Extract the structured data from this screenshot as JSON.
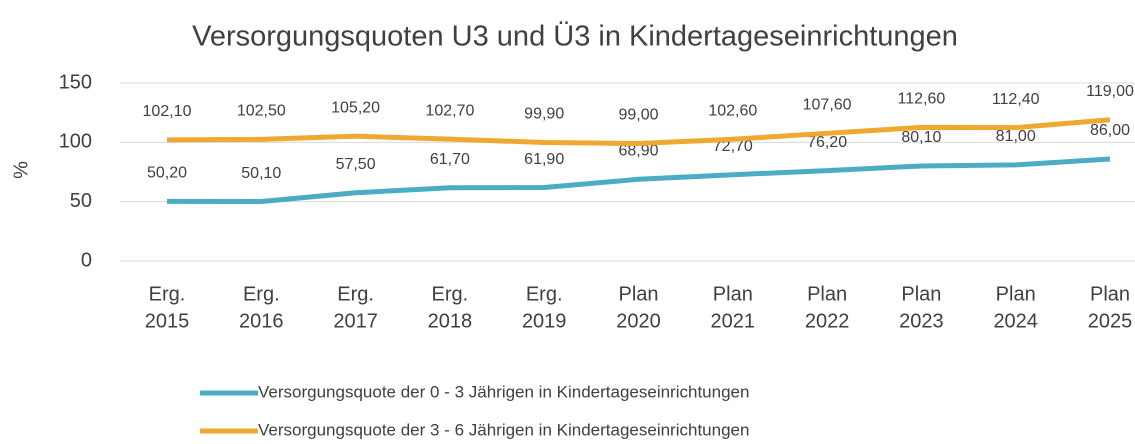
{
  "chart_data": {
    "type": "line",
    "title": "Versorgungsquoten U3 und Ü3 in Kindertageseinrichtungen",
    "ylabel": "%",
    "categories": [
      [
        "Erg.",
        "2015"
      ],
      [
        "Erg.",
        "2016"
      ],
      [
        "Erg.",
        "2017"
      ],
      [
        "Erg.",
        "2018"
      ],
      [
        "Erg.",
        "2019"
      ],
      [
        "Plan",
        "2020"
      ],
      [
        "Plan",
        "2021"
      ],
      [
        "Plan",
        "2022"
      ],
      [
        "Plan",
        "2023"
      ],
      [
        "Plan",
        "2024"
      ],
      [
        "Plan",
        "2025"
      ]
    ],
    "series": [
      {
        "name": "Versorgungsquote der 0 - 3 Jährigen in Kindertageseinrichtungen",
        "color": "#4bacc6",
        "values": [
          50.2,
          50.1,
          57.5,
          61.7,
          61.9,
          68.9,
          72.7,
          76.2,
          80.1,
          81.0,
          86.0
        ],
        "value_labels": [
          "50,20",
          "50,10",
          "57,50",
          "61,70",
          "61,90",
          "68,90",
          "72,70",
          "76,20",
          "80,10",
          "81,00",
          "86,00"
        ]
      },
      {
        "name": "Versorgungsquote der 3 - 6 Jährigen in Kindertageseinrichtungen",
        "color": "#f0a830",
        "values": [
          102.1,
          102.5,
          105.2,
          102.7,
          99.9,
          99.0,
          102.6,
          107.6,
          112.6,
          112.4,
          119.0
        ],
        "value_labels": [
          "102,10",
          "102,50",
          "105,20",
          "102,70",
          "99,90",
          "99,00",
          "102,60",
          "107,60",
          "112,60",
          "112,40",
          "119,00"
        ]
      }
    ],
    "ylim": [
      0,
      150
    ],
    "yticks": [
      0,
      50,
      100,
      150
    ],
    "grid": true
  }
}
